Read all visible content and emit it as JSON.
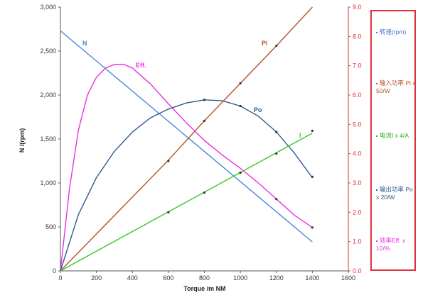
{
  "chart_data": {
    "type": "line",
    "xlabel": "Torque  /m NM",
    "ylabel": "N /(rpm)",
    "x_ticks": [
      "0",
      "200",
      "400",
      "600",
      "800",
      "1000",
      "1200",
      "1400",
      "1600"
    ],
    "y_ticks": [
      "0",
      "500",
      "1,000",
      "1,500",
      "2,000",
      "2,500",
      "3,000"
    ],
    "y2_ticks": [
      "0.0",
      "1.0",
      "2.0",
      "3.0",
      "4.0",
      "5.0",
      "6.0",
      "7.0",
      "8.0",
      "9.0"
    ],
    "xlim": [
      0,
      1600
    ],
    "ylim": [
      0,
      3000
    ],
    "y2lim": [
      0,
      9
    ],
    "grid": false,
    "legend_position": "right",
    "series": [
      {
        "name": "N",
        "label": "N",
        "axis": "left",
        "color": "#4a86d8",
        "x": [
          0,
          1400
        ],
        "y": [
          2730,
          330
        ],
        "markers": false
      },
      {
        "name": "Pi",
        "label": "Pi",
        "axis": "right",
        "color": "#b5552a",
        "x": [
          0,
          600,
          800,
          1000,
          1200,
          1400
        ],
        "y": [
          0.0,
          3.78,
          5.12,
          6.4,
          7.68,
          9.0
        ],
        "marker_x": [
          600,
          800,
          1000,
          1200
        ],
        "marker_y": [
          3.75,
          5.12,
          6.4,
          7.68
        ]
      },
      {
        "name": "Eff.",
        "label": "Eff.",
        "axis": "right",
        "color": "#e830e0",
        "x": [
          0,
          50,
          100,
          150,
          200,
          250,
          300,
          350,
          400,
          500,
          600,
          700,
          800,
          900,
          1000,
          1100,
          1200,
          1300,
          1400
        ],
        "y": [
          0.0,
          2.8,
          4.8,
          6.0,
          6.6,
          6.92,
          7.04,
          7.05,
          6.92,
          6.38,
          5.7,
          5.05,
          4.45,
          3.95,
          3.5,
          3.0,
          2.45,
          1.9,
          1.48
        ],
        "marker_x": [
          1200,
          1400
        ],
        "marker_y": [
          2.45,
          1.48
        ]
      },
      {
        "name": "Po",
        "label": "Po",
        "axis": "left",
        "color": "#2e5a8c",
        "x": [
          0,
          100,
          200,
          300,
          400,
          500,
          600,
          700,
          800,
          900,
          1000,
          1100,
          1200,
          1300,
          1400
        ],
        "y": [
          0,
          640,
          1060,
          1360,
          1580,
          1740,
          1840,
          1910,
          1945,
          1935,
          1875,
          1760,
          1580,
          1340,
          1060
        ],
        "marker_x": [
          800,
          1000,
          1200,
          1400
        ],
        "marker_y": [
          1945,
          1875,
          1580,
          1070
        ]
      },
      {
        "name": "I",
        "label": "I",
        "axis": "right",
        "color": "#38c828",
        "x": [
          0,
          1400
        ],
        "y": [
          0.0,
          4.7
        ],
        "marker_x": [
          600,
          800,
          1000,
          1200,
          1400
        ],
        "marker_y": [
          2.0,
          2.67,
          3.35,
          4.0,
          4.78
        ]
      }
    ]
  },
  "legend": [
    {
      "text": "转速(rpm)",
      "color": "#4a6fd0"
    },
    {
      "text": "输入功率 Pi  x 50/W",
      "color": "#b5552a"
    },
    {
      "text": "电流I  x 4/A",
      "color": "#2ea820"
    },
    {
      "text": "输出功率 Po x 20/W",
      "color": "#2e5a8c"
    },
    {
      "text": "效率Eff. x 10/%",
      "color": "#e830e0"
    }
  ]
}
